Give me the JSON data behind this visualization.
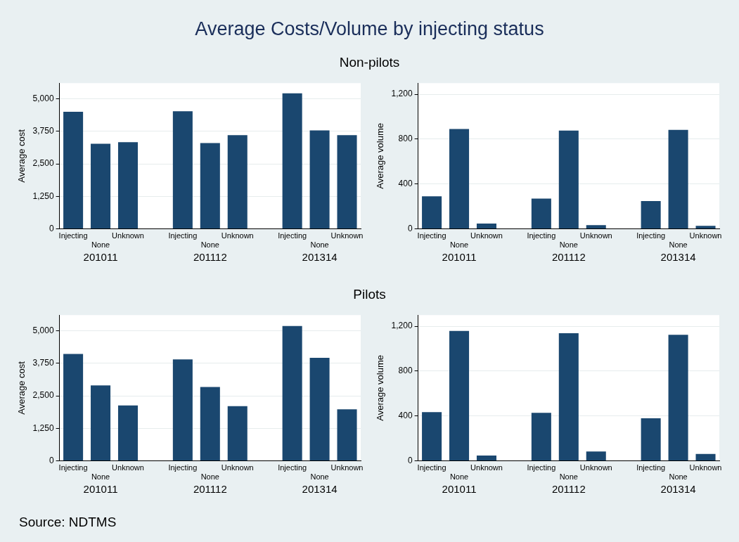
{
  "chart_data": [
    {
      "type": "bar",
      "title": "Average Costs/Volume by injecting status",
      "subtitle": "Non-pilots",
      "ylabel": "Average cost",
      "categories": [
        "Injecting",
        "None",
        "Unknown",
        null,
        "Injecting",
        "None",
        "Unknown",
        null,
        "Injecting",
        "None",
        "Unknown"
      ],
      "values": [
        4500,
        3270,
        3330,
        null,
        4520,
        3300,
        3600,
        null,
        5210,
        3780,
        3600
      ],
      "color": "#1a476f",
      "ylim": [
        0,
        5600
      ],
      "yticks": [
        0,
        {
          "value": 1250,
          "label": "1,250"
        },
        {
          "value": 2500,
          "label": "2,500"
        },
        {
          "value": 3750,
          "label": "3,750"
        },
        {
          "value": 5000,
          "label": "5,000"
        }
      ],
      "grid": "y",
      "legend": false,
      "annotations": [
        "201011",
        "201112",
        "201314"
      ]
    },
    {
      "type": "bar",
      "ylabel": "Average volume",
      "categories": [
        "Injecting",
        "None",
        "Unknown",
        null,
        "Injecting",
        "None",
        "Unknown",
        null,
        "Injecting",
        "None",
        "Unknown"
      ],
      "values": [
        290,
        890,
        48,
        null,
        270,
        876,
        34,
        null,
        248,
        883,
        28
      ],
      "color": "#1a476f",
      "ylim": [
        0,
        1300
      ],
      "yticks": [
        0,
        400,
        800,
        {
          "value": 1200,
          "label": "1,200"
        }
      ],
      "grid": "y",
      "legend": false,
      "annotations": [
        "201011",
        "201112",
        "201314"
      ]
    },
    {
      "type": "bar",
      "subtitle": "Pilots",
      "ylabel": "Average cost",
      "categories": [
        "Injecting",
        "None",
        "Unknown",
        null,
        "Injecting",
        "None",
        "Unknown",
        null,
        "Injecting",
        "None",
        "Unknown"
      ],
      "values": [
        4110,
        2900,
        2130,
        null,
        3900,
        2840,
        2100,
        null,
        5180,
        3960,
        1980
      ],
      "color": "#1a476f",
      "ylim": [
        0,
        5600
      ],
      "yticks": [
        0,
        {
          "value": 1250,
          "label": "1,250"
        },
        {
          "value": 2500,
          "label": "2,500"
        },
        {
          "value": 3750,
          "label": "3,750"
        },
        {
          "value": 5000,
          "label": "5,000"
        }
      ],
      "grid": "y",
      "legend": false,
      "annotations": [
        "201011",
        "201112",
        "201314"
      ]
    },
    {
      "type": "bar",
      "ylabel": "Average volume",
      "categories": [
        "Injecting",
        "None",
        "Unknown",
        null,
        "Injecting",
        "None",
        "Unknown",
        null,
        "Injecting",
        "None",
        "Unknown"
      ],
      "values": [
        434,
        1159,
        48,
        null,
        428,
        1138,
        83,
        null,
        380,
        1124,
        62
      ],
      "color": "#1a476f",
      "ylim": [
        0,
        1300
      ],
      "yticks": [
        0,
        400,
        800,
        {
          "value": 1200,
          "label": "1,200"
        }
      ],
      "grid": "y",
      "legend": false,
      "annotations": [
        "201011",
        "201112",
        "201314",
        "Source:  NDTMS"
      ]
    }
  ]
}
